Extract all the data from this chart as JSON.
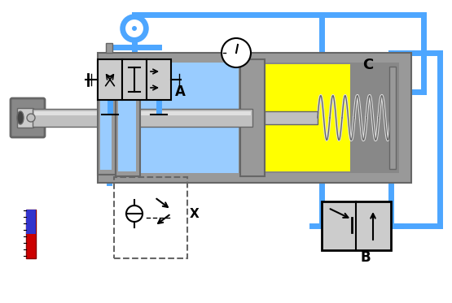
{
  "bg_color": "#f0f0f0",
  "blue_line": "#4da6ff",
  "blue_dark": "#1a6bcc",
  "gray_body": "#999999",
  "gray_dark": "#666666",
  "gray_light": "#cccccc",
  "gray_mid": "#888888",
  "yellow": "#ffff00",
  "white": "#ffffff",
  "black": "#000000",
  "red": "#cc0000",
  "silver": "#c0c0c0",
  "silver_light": "#e0e0e0",
  "blue_fill": "#99ccff",
  "label_A": "A",
  "label_B": "B",
  "label_C": "C",
  "label_X": "X"
}
